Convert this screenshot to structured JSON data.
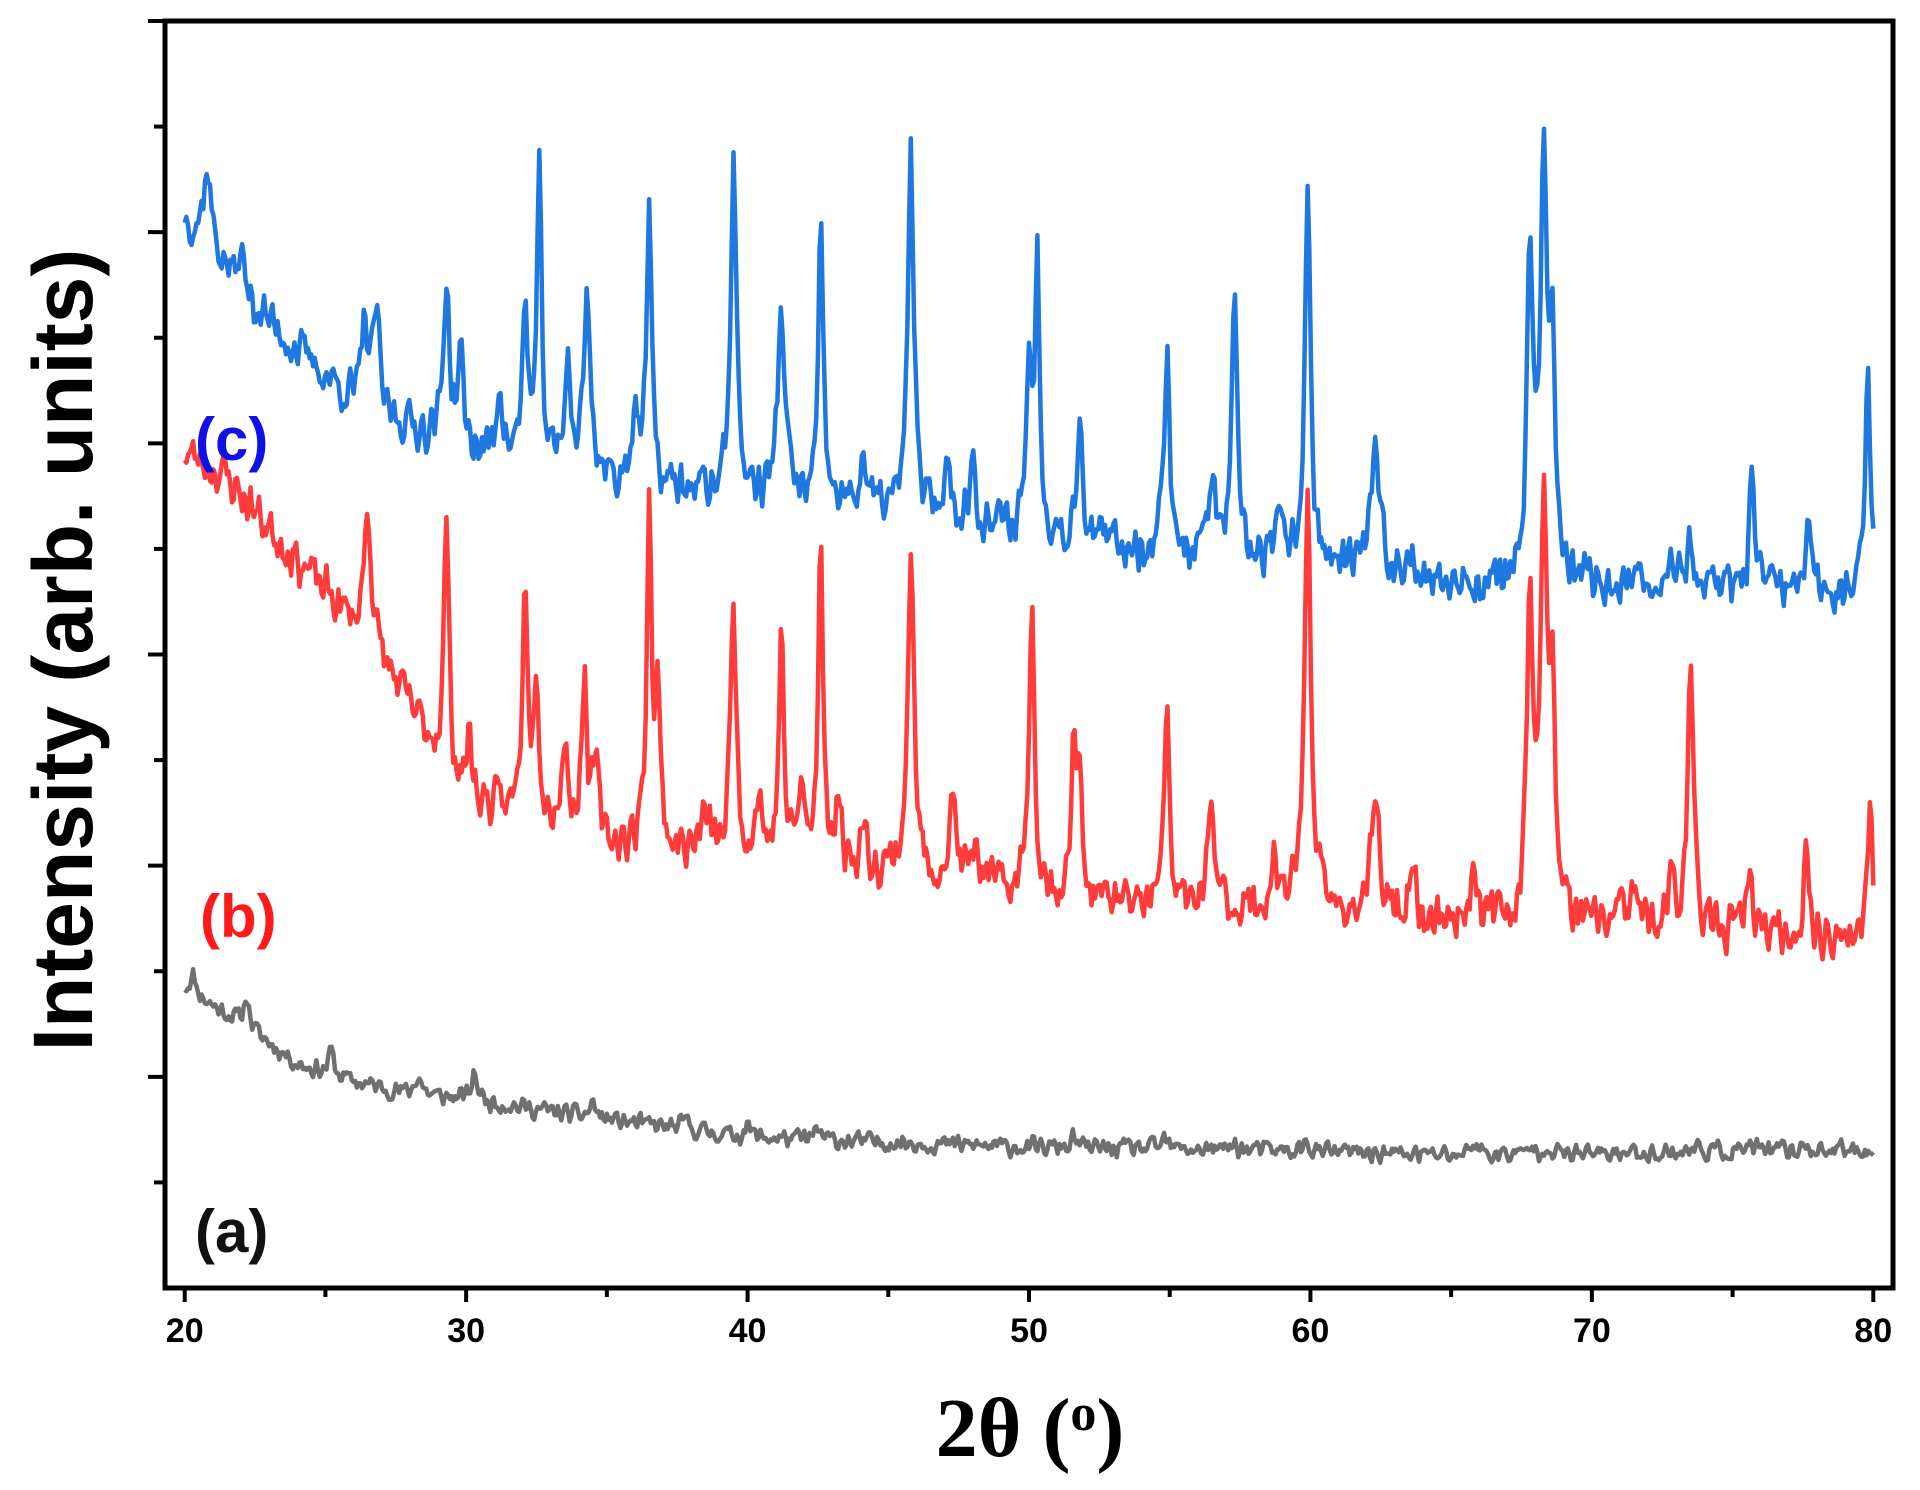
{
  "chart_data": {
    "type": "line",
    "title": "",
    "xlabel": "2θ (o)",
    "ylabel": "Intensity (arb. units)",
    "xlim": [
      19.3,
      80.7
    ],
    "ylim": [
      0,
      100
    ],
    "x_ticks": [
      20,
      30,
      40,
      50,
      60,
      70,
      80
    ],
    "x_tick_labels": [
      "20",
      "30",
      "40",
      "50",
      "60",
      "70",
      "80"
    ],
    "y_tick_labels_visible": false,
    "legend": "none",
    "series": [
      {
        "name": "(a)",
        "color": "#707070",
        "baseline": [
          [
            20,
            23.5
          ],
          [
            22,
            21.0
          ],
          [
            24,
            17.7
          ],
          [
            26,
            16.3
          ],
          [
            28,
            15.3
          ],
          [
            30,
            14.9
          ],
          [
            35,
            13.3
          ],
          [
            40,
            11.9
          ],
          [
            45,
            11.5
          ],
          [
            50,
            11.1
          ],
          [
            55,
            11.0
          ],
          [
            60,
            10.8
          ],
          [
            65,
            10.5
          ],
          [
            70,
            10.6
          ],
          [
            75,
            10.8
          ],
          [
            80,
            10.9
          ]
        ],
        "peaks": [
          [
            20.3,
            1.5,
            0.15
          ],
          [
            22.2,
            2.5,
            0.1
          ],
          [
            25.2,
            2.0,
            0.1
          ],
          [
            28.3,
            1.5,
            0.15
          ],
          [
            30.3,
            2.2,
            0.12
          ],
          [
            34.5,
            1.2,
            0.12
          ],
          [
            37.8,
            0.8,
            0.12
          ],
          [
            40.0,
            1.0,
            0.12
          ],
          [
            42.5,
            0.8,
            0.12
          ],
          [
            51.6,
            0.8,
            0.12
          ],
          [
            54.8,
            0.7,
            0.12
          ],
          [
            57.3,
            0.5,
            0.12
          ],
          [
            59.9,
            0.6,
            0.12
          ],
          [
            65.8,
            1.0,
            0.15
          ],
          [
            67.9,
            0.6,
            0.12
          ],
          [
            68.4,
            0.8,
            0.12
          ],
          [
            73.8,
            0.5,
            0.12
          ],
          [
            75.6,
            0.6,
            0.12
          ],
          [
            77.6,
            0.5,
            0.12
          ]
        ],
        "noise": 0.9,
        "seed": 11
      },
      {
        "name": "(b)",
        "color": "#ff3c3c",
        "baseline": [
          [
            20,
            66.0
          ],
          [
            21.5,
            64.0
          ],
          [
            23,
            60.0
          ],
          [
            25,
            55.0
          ],
          [
            27,
            49.5
          ],
          [
            30,
            38.5
          ],
          [
            35,
            35.0
          ],
          [
            40,
            34.0
          ],
          [
            45,
            33.0
          ],
          [
            50,
            31.0
          ],
          [
            55,
            30.0
          ],
          [
            60,
            29.5
          ],
          [
            65,
            29.0
          ],
          [
            70,
            28.5
          ],
          [
            75,
            28.0
          ],
          [
            80,
            27.5
          ]
        ],
        "peaks": [
          [
            26.5,
            11,
            0.15
          ],
          [
            29.3,
            20,
            0.1
          ],
          [
            30.1,
            5,
            0.12
          ],
          [
            32.1,
            18,
            0.12
          ],
          [
            32.5,
            12,
            0.1
          ],
          [
            33.5,
            6,
            0.15
          ],
          [
            34.2,
            12,
            0.12
          ],
          [
            34.6,
            6,
            0.1
          ],
          [
            36.5,
            27,
            0.1
          ],
          [
            36.8,
            12,
            0.1
          ],
          [
            38.5,
            3,
            0.15
          ],
          [
            39.5,
            20,
            0.12
          ],
          [
            40.4,
            5,
            0.12
          ],
          [
            41.2,
            18,
            0.1
          ],
          [
            41.9,
            6,
            0.12
          ],
          [
            42.6,
            25,
            0.1
          ],
          [
            43.2,
            5,
            0.12
          ],
          [
            44.1,
            3,
            0.12
          ],
          [
            45.8,
            25,
            0.13
          ],
          [
            47.3,
            6,
            0.15
          ],
          [
            48.1,
            3,
            0.15
          ],
          [
            50.1,
            23,
            0.12
          ],
          [
            51.6,
            12,
            0.1
          ],
          [
            51.8,
            9,
            0.1
          ],
          [
            54.9,
            17,
            0.1
          ],
          [
            56.5,
            7,
            0.18
          ],
          [
            58.7,
            5,
            0.1
          ],
          [
            59.9,
            32,
            0.15
          ],
          [
            62.3,
            8,
            0.2
          ],
          [
            63.6,
            4,
            0.12
          ],
          [
            65.8,
            5,
            0.12
          ],
          [
            67.8,
            26,
            0.12
          ],
          [
            68.3,
            31,
            0.15
          ],
          [
            68.6,
            18,
            0.1
          ],
          [
            70.9,
            3,
            0.12
          ],
          [
            71.5,
            3,
            0.12
          ],
          [
            72.8,
            4,
            0.12
          ],
          [
            73.5,
            22,
            0.12
          ],
          [
            75.6,
            4,
            0.15
          ],
          [
            77.6,
            7,
            0.1
          ],
          [
            79.9,
            11,
            0.1
          ]
        ],
        "noise": 2.2,
        "seed": 23
      },
      {
        "name": "(c)",
        "color": "#1f78e0",
        "baseline": [
          [
            20,
            84.5
          ],
          [
            21,
            82.0
          ],
          [
            22,
            78.5
          ],
          [
            24,
            74.0
          ],
          [
            26,
            70.0
          ],
          [
            28,
            68.0
          ],
          [
            30,
            66.0
          ],
          [
            35,
            63.5
          ],
          [
            40,
            62.5
          ],
          [
            45,
            61.5
          ],
          [
            50,
            59.5
          ],
          [
            55,
            58.0
          ],
          [
            60,
            57.0
          ],
          [
            65,
            55.5
          ],
          [
            70,
            55.5
          ],
          [
            75,
            55.0
          ],
          [
            80,
            55.0
          ]
        ],
        "peaks": [
          [
            20.8,
            6,
            0.15
          ],
          [
            22.0,
            3,
            0.15
          ],
          [
            26.4,
            7,
            0.12
          ],
          [
            26.8,
            8,
            0.12
          ],
          [
            29.3,
            13,
            0.12
          ],
          [
            29.8,
            7,
            0.12
          ],
          [
            31.2,
            6,
            0.12
          ],
          [
            32.1,
            12,
            0.12
          ],
          [
            32.6,
            22,
            0.1
          ],
          [
            33.6,
            9,
            0.12
          ],
          [
            34.3,
            14,
            0.15
          ],
          [
            36.0,
            6,
            0.15
          ],
          [
            36.5,
            22,
            0.1
          ],
          [
            39.5,
            27,
            0.12
          ],
          [
            41.2,
            15,
            0.15
          ],
          [
            42.6,
            21,
            0.1
          ],
          [
            44.1,
            4,
            0.12
          ],
          [
            45.8,
            29,
            0.12
          ],
          [
            47.1,
            4,
            0.15
          ],
          [
            48.0,
            5,
            0.12
          ],
          [
            50.0,
            13,
            0.12
          ],
          [
            50.3,
            21,
            0.1
          ],
          [
            51.8,
            10,
            0.12
          ],
          [
            54.9,
            16,
            0.12
          ],
          [
            56.5,
            6,
            0.15
          ],
          [
            57.3,
            19,
            0.12
          ],
          [
            58.9,
            3,
            0.12
          ],
          [
            59.9,
            30,
            0.12
          ],
          [
            62.3,
            9,
            0.2
          ],
          [
            63.6,
            3,
            0.12
          ],
          [
            67.8,
            25,
            0.12
          ],
          [
            68.3,
            33,
            0.15
          ],
          [
            68.6,
            16,
            0.1
          ],
          [
            72.8,
            4,
            0.12
          ],
          [
            73.5,
            4,
            0.12
          ],
          [
            75.7,
            9,
            0.12
          ],
          [
            77.7,
            4,
            0.12
          ],
          [
            79.8,
            19,
            0.1
          ]
        ],
        "noise": 2.2,
        "seed": 37
      }
    ]
  },
  "labels": {
    "a": "(a)",
    "b": "(b)",
    "c": "(c)"
  },
  "axis_titles": {
    "x_main": "2θ (",
    "x_sup": "o",
    "x_close": ")",
    "y": "Intensity (arb. units)"
  }
}
